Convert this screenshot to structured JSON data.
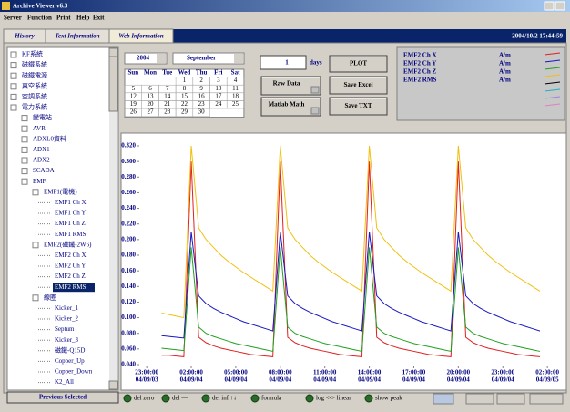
{
  "window": {
    "title": "Archive Viewer v6.3",
    "menu": [
      "Server",
      "Function",
      "Print",
      "Help",
      "Exit"
    ]
  },
  "tabs": [
    "History",
    "Text Information",
    "Web Information"
  ],
  "datetime": "2004/10/2 17:44:59",
  "tree": [
    "KF系統",
    "磁鐵系統",
    "磁鐵電源",
    "真空系統",
    "空調系統",
    "電力系統",
    "變電站",
    "AVR",
    "ADXL0資料",
    "ADX1",
    "ADX2",
    "SCADA",
    "EMF",
    "EMF1(電機)",
    "EMF1 Ch X",
    "EMF1 Ch Y",
    "EMF1 Ch Z",
    "EMF1 RMS",
    "EMF2(磁鐵-2W6)",
    "EMF2 Ch X",
    "EMF2 Ch Y",
    "EMF2 Ch Z",
    "EMF2 RMS",
    "線圈",
    "Kicker_1",
    "Kicker_2",
    "Septum",
    "Kicker_3",
    "磁鐵-Q15D",
    "Copper_Up",
    "Copper_Down",
    "K2_All"
  ],
  "previous_button": "Previous Selected",
  "calendar": {
    "year": "2004",
    "month": "September",
    "weekdays": [
      "Sun",
      "Mon",
      "Tue",
      "Wed",
      "Thu",
      "Fri",
      "Sat"
    ],
    "days": [
      1,
      2,
      3,
      4,
      5,
      6,
      7,
      8,
      9,
      10,
      11,
      12,
      13,
      14,
      15,
      16,
      17,
      18,
      19,
      20,
      21,
      22,
      23,
      24,
      25,
      26,
      27,
      28,
      29,
      30
    ]
  },
  "controls": {
    "days_value": 1,
    "days_label": "days",
    "plot": "PLOT",
    "raw_data": "Raw Data",
    "save_excel": "Save Excel",
    "matlab_math": "Matlab Math",
    "save_txt": "Save TXT"
  },
  "toolbar": [
    "del zero",
    "del —",
    "del inf ↑↓",
    "formula",
    "log <-> linear",
    "show peak"
  ],
  "chart_data": {
    "type": "line",
    "x": [
      "04/09/04 00:00:00",
      "04/09/04 00:30:00",
      "04/09/04 01:00:00",
      "04/09/04 01:30:00",
      "04/09/04 02:00:00",
      "04/09/04 02:30:00",
      "04/09/04 03:00:00",
      "04/09/04 03:30:00",
      "04/09/04 04:00:00",
      "04/09/04 04:30:00",
      "04/09/04 05:00:00",
      "04/09/04 05:30:00",
      "04/09/04 06:00:00",
      "04/09/04 06:30:00",
      "04/09/04 07:00:00",
      "04/09/04 07:30:00",
      "04/09/04 08:00:00",
      "04/09/04 08:30:00",
      "04/09/04 09:00:00",
      "04/09/04 09:30:00",
      "04/09/04 10:00:00",
      "04/09/04 10:30:00",
      "04/09/04 11:00:00",
      "04/09/04 11:30:00",
      "04/09/04 12:00:00",
      "04/09/04 12:30:00",
      "04/09/04 13:00:00",
      "04/09/04 13:30:00",
      "04/09/04 14:00:00",
      "04/09/04 14:30:00",
      "04/09/04 15:00:00",
      "04/09/04 15:30:00",
      "04/09/04 16:00:00",
      "04/09/04 16:30:00",
      "04/09/04 17:00:00",
      "04/09/04 17:30:00",
      "04/09/04 18:00:00",
      "04/09/04 18:30:00",
      "04/09/04 19:00:00",
      "04/09/04 19:30:00",
      "04/09/04 20:00:00",
      "04/09/04 20:30:00",
      "04/09/04 21:00:00",
      "04/09/04 21:30:00",
      "04/09/04 22:00:00",
      "04/09/04 22:30:00",
      "04/09/04 23:00:00",
      "04/09/04 23:30:00",
      "04/09/05 00:00:00",
      "04/09/05 00:30:00",
      "04/09/05 01:00:00",
      "04/09/05 01:30:00"
    ],
    "xlim": [
      "04/09/03 22:30:00",
      "04/09/05 02:40:00"
    ],
    "xticks": [
      {
        "value": "04/09/03 23:00:00",
        "label": [
          "23:00:00",
          "04/09/03"
        ]
      },
      {
        "value": "04/09/04 02:00:00",
        "label": [
          "02:00:00",
          "04/09/04"
        ]
      },
      {
        "value": "04/09/04 05:00:00",
        "label": [
          "05:00:00",
          "04/09/04"
        ]
      },
      {
        "value": "04/09/04 08:00:00",
        "label": [
          "08:00:00",
          "04/09/04"
        ]
      },
      {
        "value": "04/09/04 11:00:00",
        "label": [
          "11:00:00",
          "04/09/04"
        ]
      },
      {
        "value": "04/09/04 14:00:00",
        "label": [
          "14:00:00",
          "04/09/04"
        ]
      },
      {
        "value": "04/09/04 17:00:00",
        "label": [
          "17:00:00",
          "04/09/04"
        ]
      },
      {
        "value": "04/09/04 20:00:00",
        "label": [
          "20:00:00",
          "04/09/04"
        ]
      },
      {
        "value": "04/09/04 23:00:00",
        "label": [
          "23:00:00",
          "04/09/04"
        ]
      },
      {
        "value": "04/09/05 02:00:00",
        "label": [
          "02:00:00",
          "04/09/05"
        ]
      }
    ],
    "ylim": [
      0.04,
      0.32
    ],
    "yticks": [
      {
        "value": 0.32,
        "label": "0.320"
      },
      {
        "value": 0.3,
        "label": "0.300"
      },
      {
        "value": 0.28,
        "label": "0.280"
      },
      {
        "value": 0.26,
        "label": "0.260"
      },
      {
        "value": 0.24,
        "label": "0.240"
      },
      {
        "value": 0.22,
        "label": "0.220"
      },
      {
        "value": 0.2,
        "label": "0.200"
      },
      {
        "value": 0.18,
        "label": "0.180"
      },
      {
        "value": 0.16,
        "label": "0.160"
      },
      {
        "value": 0.14,
        "label": "0.140"
      },
      {
        "value": 0.12,
        "label": "0.120"
      },
      {
        "value": 0.1,
        "label": "0.100"
      },
      {
        "value": 0.08,
        "label": "0.080"
      },
      {
        "value": 0.06,
        "label": "0.060"
      },
      {
        "value": 0.04,
        "label": "0.040"
      }
    ],
    "series": [
      {
        "name": "EMF2 Ch X",
        "unit": "A/m",
        "color": "#e02020",
        "values": [
          0.052,
          0.052,
          0.051,
          0.05,
          0.3,
          0.075,
          0.068,
          0.064,
          0.061,
          0.059,
          0.057,
          0.055,
          0.053,
          0.052,
          0.051,
          0.05,
          0.3,
          0.075,
          0.068,
          0.064,
          0.061,
          0.059,
          0.057,
          0.055,
          0.053,
          0.052,
          0.051,
          0.05,
          0.3,
          0.075,
          0.068,
          0.064,
          0.061,
          0.059,
          0.057,
          0.055,
          0.053,
          0.052,
          0.051,
          0.05,
          0.3,
          0.075,
          0.068,
          0.064,
          0.061,
          0.059,
          0.057,
          0.055,
          0.053,
          0.052,
          0.051,
          0.05
        ]
      },
      {
        "name": "EMF2 Ch Y",
        "unit": "A/m",
        "color": "#1818c0",
        "values": [
          0.077,
          0.076,
          0.075,
          0.074,
          0.21,
          0.128,
          0.118,
          0.112,
          0.107,
          0.103,
          0.099,
          0.095,
          0.092,
          0.089,
          0.086,
          0.083,
          0.21,
          0.128,
          0.118,
          0.112,
          0.107,
          0.103,
          0.099,
          0.095,
          0.092,
          0.089,
          0.086,
          0.083,
          0.21,
          0.128,
          0.118,
          0.112,
          0.107,
          0.103,
          0.099,
          0.095,
          0.092,
          0.089,
          0.086,
          0.083,
          0.21,
          0.128,
          0.118,
          0.112,
          0.107,
          0.103,
          0.099,
          0.095,
          0.092,
          0.089,
          0.086,
          0.083
        ]
      },
      {
        "name": "EMF2 Ch Z",
        "unit": "A/m",
        "color": "#20a020",
        "values": [
          0.061,
          0.06,
          0.059,
          0.058,
          0.19,
          0.088,
          0.08,
          0.076,
          0.073,
          0.07,
          0.067,
          0.065,
          0.063,
          0.061,
          0.059,
          0.057,
          0.19,
          0.088,
          0.08,
          0.076,
          0.073,
          0.07,
          0.067,
          0.065,
          0.063,
          0.061,
          0.059,
          0.057,
          0.19,
          0.088,
          0.08,
          0.076,
          0.073,
          0.07,
          0.067,
          0.065,
          0.063,
          0.061,
          0.059,
          0.057,
          0.19,
          0.088,
          0.08,
          0.076,
          0.073,
          0.07,
          0.067,
          0.065,
          0.063,
          0.061,
          0.059,
          0.057
        ]
      },
      {
        "name": "EMF2 RMS",
        "unit": "A/m",
        "color": "#f0c010",
        "values": [
          0.106,
          0.104,
          0.102,
          0.1,
          0.32,
          0.215,
          0.2,
          0.19,
          0.18,
          0.172,
          0.165,
          0.158,
          0.152,
          0.146,
          0.14,
          0.134,
          0.32,
          0.215,
          0.2,
          0.19,
          0.18,
          0.172,
          0.165,
          0.158,
          0.152,
          0.146,
          0.14,
          0.134,
          0.32,
          0.215,
          0.2,
          0.19,
          0.18,
          0.172,
          0.165,
          0.158,
          0.152,
          0.146,
          0.14,
          0.134,
          0.32,
          0.215,
          0.2,
          0.19,
          0.18,
          0.172,
          0.165,
          0.158,
          0.152,
          0.146,
          0.14,
          0.134
        ]
      }
    ]
  }
}
